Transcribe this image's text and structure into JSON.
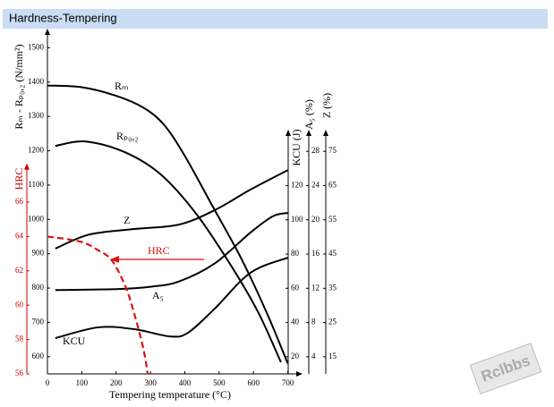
{
  "chart_data": {
    "type": "line",
    "title": "Hardness-Tempering",
    "xlabel": "Tempering temperature (°C)",
    "xlim": [
      0,
      735
    ],
    "xticks": [
      0,
      100,
      200,
      300,
      400,
      500,
      600,
      700
    ],
    "ylabel": "Rₘ - Rₚ₀,₂ (N/mm²)",
    "ylim": [
      550,
      1540
    ],
    "yticks": [
      600,
      700,
      800,
      900,
      1000,
      1100,
      1200,
      1300,
      1400,
      1500
    ],
    "axes": {
      "hrc": {
        "label": "HRC",
        "ylim": [
          56,
          68
        ],
        "yticks": [
          56,
          58,
          60,
          62,
          64,
          66
        ],
        "color": "#cc0000"
      },
      "kcu": {
        "label": "KCU (J)",
        "ylim": [
          10,
          150
        ],
        "yticks": [
          20,
          40,
          60,
          80,
          100,
          120
        ]
      },
      "a5": {
        "label": "A₅ (%)",
        "ylim": [
          2,
          30
        ],
        "yticks": [
          4,
          8,
          12,
          16,
          20,
          24,
          28
        ]
      },
      "z": {
        "label": "Z (%)",
        "ylim": [
          10,
          80
        ],
        "yticks": [
          15,
          25,
          35,
          45,
          55,
          65,
          75
        ]
      }
    },
    "series": [
      {
        "name": "Rₘ",
        "axis": "y",
        "color": "#000000",
        "x": [
          0,
          100,
          200,
          280,
          340,
          400,
          480,
          565,
          640,
          700
        ],
        "values": [
          1390,
          1385,
          1360,
          1325,
          1275,
          1185,
          1040,
          885,
          725,
          580
        ]
      },
      {
        "name": "Rₚ₀,₂",
        "axis": "y",
        "color": "#000000",
        "x": [
          23,
          110,
          225,
          330,
          435,
          540,
          615,
          680
        ],
        "values": [
          1214,
          1227,
          1196,
          1131,
          1014,
          857,
          727,
          584
        ]
      },
      {
        "name": "Z",
        "axis": "z",
        "color": "#000000",
        "x": [
          23,
          122,
          253,
          383,
          487,
          591,
          700
        ],
        "values": [
          46.6,
          50.7,
          52.3,
          53.6,
          57.8,
          63.8,
          69.5
        ]
      },
      {
        "name": "A₅",
        "axis": "a5",
        "color": "#000000",
        "x": [
          23,
          200,
          305,
          383,
          487,
          591,
          656,
          700
        ],
        "values": [
          11.8,
          11.9,
          12.2,
          12.8,
          14.9,
          18.5,
          20.4,
          20.8
        ]
      },
      {
        "name": "KCU",
        "axis": "kcu",
        "color": "#000000",
        "x": [
          23,
          148,
          253,
          357,
          409,
          487,
          591,
          700
        ],
        "values": [
          30.9,
          37.2,
          36.1,
          31.9,
          34,
          48.1,
          69,
          77.9
        ]
      },
      {
        "name": "HRC",
        "axis": "hrc",
        "color": "#dd1111",
        "dashed": true,
        "x": [
          0,
          96,
          148,
          188,
          227,
          253,
          279,
          292
        ],
        "values": [
          64,
          63.7,
          63.2,
          62.6,
          61.1,
          59.5,
          57.5,
          56
        ]
      }
    ],
    "watermark": "Rclbbs"
  }
}
